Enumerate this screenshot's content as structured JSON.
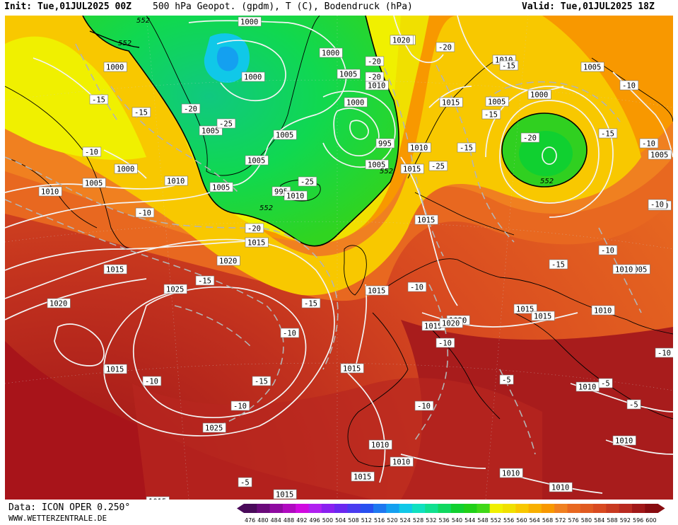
{
  "header": {
    "init": "Init: Tue,01JUL2025 00Z",
    "title": "500 hPa Geopot. (gpdm), T (C), Bodendruck (hPa)",
    "valid": "Valid: Tue,01JUL2025 18Z"
  },
  "footer": {
    "data": "Data: ICON OPER 0.250°",
    "site": "WWW.WETTERZENTRALE.DE"
  },
  "legend": {
    "values": [
      "476",
      "480",
      "484",
      "488",
      "492",
      "496",
      "500",
      "504",
      "508",
      "512",
      "516",
      "520",
      "524",
      "528",
      "532",
      "536",
      "540",
      "544",
      "548",
      "552",
      "556",
      "560",
      "564",
      "568",
      "572",
      "576",
      "580",
      "584",
      "588",
      "592",
      "596",
      "600"
    ],
    "colors": [
      "#4a0a5a",
      "#6a0a7a",
      "#8e0aa0",
      "#b00ac0",
      "#d00ae0",
      "#b020f0",
      "#8a20f0",
      "#6a28f0",
      "#4a3cf0",
      "#2850f0",
      "#1e78f0",
      "#14a0f0",
      "#10c8e8",
      "#10e0c0",
      "#10e090",
      "#10d860",
      "#10d030",
      "#20d018",
      "#40d818",
      "#f0f000",
      "#f0e000",
      "#f8c800",
      "#f8b000",
      "#f89800",
      "#f08020",
      "#e86820",
      "#e05a20",
      "#d84a20",
      "#c83a20",
      "#b82a20",
      "#a01818",
      "#880c10"
    ]
  },
  "map": {
    "pressure_labels": [
      "1000",
      "1000",
      "1000",
      "1000",
      "1000",
      "1000",
      "1020",
      "1010",
      "1005",
      "1005",
      "1005",
      "1005",
      "1005",
      "1005",
      "1005",
      "1005",
      "995",
      "995",
      "1000",
      "1010",
      "1010",
      "1010",
      "1010",
      "1010",
      "1015",
      "1015",
      "1015",
      "1015",
      "1015",
      "1015",
      "1015",
      "1015",
      "1020",
      "1020",
      "1020",
      "1025",
      "1025",
      "1015",
      "1015",
      "1020",
      "1005",
      "1010",
      "1010",
      "1010",
      "1010",
      "1005",
      "1010",
      "1010",
      "1015",
      "1010",
      "1020",
      "1015",
      "1010",
      "1005",
      "1010",
      "1015",
      "1010",
      "1015"
    ],
    "temperature_labels": [
      "-15",
      "-15",
      "-20",
      "-25",
      "-10",
      "-10",
      "-20",
      "-20",
      "-25",
      "-20",
      "-15",
      "-15",
      "-15",
      "-20",
      "-15",
      "-25",
      "-20",
      "-15",
      "-10",
      "-10",
      "-15",
      "-10",
      "-15",
      "-10",
      "-10",
      "-10",
      "-5",
      "-5",
      "-10",
      "-10",
      "-5",
      "-5",
      "-10",
      "-10",
      "-15",
      "-10"
    ],
    "geopot_labels": [
      "552",
      "552",
      "552",
      "552",
      "552"
    ]
  }
}
